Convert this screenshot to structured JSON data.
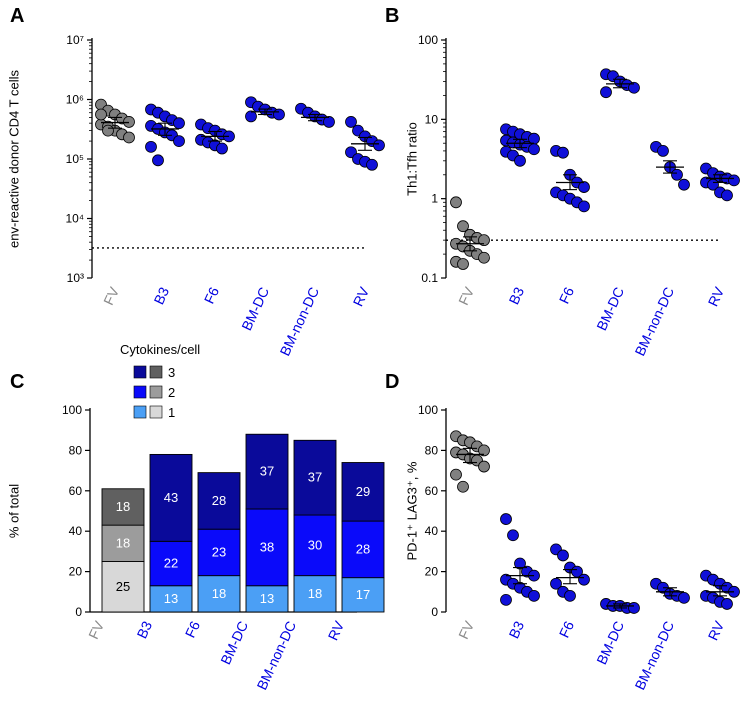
{
  "colors": {
    "grey": "#808080",
    "blue": "#1010d8",
    "cat_fv": "#8a8a8a",
    "cat_blue": "#0000e0"
  },
  "chart_data": [
    {
      "panel": "A",
      "type": "scatter",
      "ylabel": "env-reactive donor CD4 T cells",
      "yscale": "log",
      "ylim": [
        1000,
        10000000
      ],
      "ytick_labels": [
        "10³",
        "10⁴",
        "10⁵",
        "10⁶",
        "10⁷"
      ],
      "ytick_values": [
        1000,
        10000,
        100000,
        1000000,
        10000000
      ],
      "threshold": 3200,
      "categories": [
        "FV",
        "B3",
        "F6",
        "BM-DC",
        "BM-non-DC",
        "RV"
      ],
      "mean": [
        410000,
        320000,
        240000,
        620000,
        500000,
        180000
      ],
      "sem_lower": [
        330000,
        250000,
        200000,
        560000,
        440000,
        140000
      ],
      "sem_upper": [
        500000,
        400000,
        290000,
        690000,
        560000,
        230000
      ],
      "points": [
        [
          820000,
          650000,
          560000,
          480000,
          420000,
          380000,
          350000,
          300000,
          260000,
          230000,
          560000,
          300000
        ],
        [
          680000,
          600000,
          520000,
          450000,
          400000,
          360000,
          320000,
          280000,
          250000,
          200000,
          160000,
          95000
        ],
        [
          380000,
          330000,
          300000,
          260000,
          240000,
          210000,
          190000,
          170000,
          150000
        ],
        [
          900000,
          760000,
          680000,
          600000,
          560000,
          520000
        ],
        [
          700000,
          600000,
          520000,
          460000,
          420000
        ],
        [
          420000,
          300000,
          240000,
          200000,
          170000,
          130000,
          100000,
          90000,
          80000
        ]
      ]
    },
    {
      "panel": "B",
      "type": "scatter",
      "ylabel": "Th1:Tfh ratio",
      "yscale": "log",
      "ylim": [
        0.1,
        100
      ],
      "ytick_labels": [
        "0.1",
        "1",
        "10",
        "100"
      ],
      "ytick_values": [
        0.1,
        1,
        10,
        100
      ],
      "threshold": 0.3,
      "categories": [
        "FV",
        "B3",
        "F6",
        "BM-DC",
        "BM-non-DC",
        "RV"
      ],
      "mean": [
        0.27,
        5.0,
        1.6,
        28,
        2.5,
        1.8
      ],
      "sem_lower": [
        0.22,
        4.4,
        1.3,
        25,
        2.1,
        1.6
      ],
      "sem_upper": [
        0.33,
        5.6,
        2.0,
        32,
        3.0,
        2.0
      ],
      "points": [
        [
          0.9,
          0.45,
          0.35,
          0.32,
          0.3,
          0.27,
          0.25,
          0.22,
          0.2,
          0.18,
          0.16,
          0.15
        ],
        [
          7.5,
          7,
          6.5,
          6,
          5.7,
          5.4,
          5.1,
          4.8,
          4.5,
          4.2,
          3.9,
          3.5,
          3
        ],
        [
          4,
          3.8,
          2,
          1.6,
          1.4,
          1.2,
          1.1,
          1.0,
          0.9,
          0.8
        ],
        [
          37,
          35,
          30,
          27,
          25,
          22
        ],
        [
          4.5,
          4.0,
          2.5,
          2.0,
          1.5
        ],
        [
          2.4,
          2.1,
          1.9,
          1.8,
          1.7,
          1.6,
          1.5,
          1.2,
          1.1
        ]
      ]
    },
    {
      "panel": "C",
      "type": "bar",
      "stacked": true,
      "ylabel": "% of total",
      "ylim": [
        0,
        100
      ],
      "ytick_values": [
        0,
        20,
        40,
        60,
        80,
        100
      ],
      "legend_title": "Cytokines/cell",
      "legend_items": [
        "3",
        "2",
        "1"
      ],
      "categories": [
        "FV",
        "B3",
        "F6",
        "BM-DC",
        "BM-non-DC",
        "RV"
      ],
      "series": [
        {
          "name": "1",
          "values": [
            25,
            13,
            18,
            13,
            18,
            17
          ],
          "labels": [
            "25",
            "13",
            "18",
            "13",
            "18",
            "17"
          ],
          "color_blue": "#4b9ff5",
          "color_grey": "#d8d8d8"
        },
        {
          "name": "2",
          "values": [
            18,
            22,
            23,
            38,
            30,
            28
          ],
          "labels": [
            "18",
            "22",
            "23",
            "38",
            "30",
            "28"
          ],
          "color_blue": "#0a0afa",
          "color_grey": "#9c9c9c"
        },
        {
          "name": "3",
          "values": [
            18,
            43,
            28,
            37,
            37,
            29
          ],
          "labels": [
            "18",
            "43",
            "28",
            "37",
            "37",
            "29"
          ],
          "color_blue": "#0a0a9a",
          "color_grey": "#606060"
        }
      ]
    },
    {
      "panel": "D",
      "type": "scatter",
      "ylabel": "PD-1⁺ LAG3⁺, %",
      "yscale": "linear",
      "ylim": [
        0,
        100
      ],
      "ytick_labels": [
        "0",
        "20",
        "40",
        "60",
        "80",
        "100"
      ],
      "ytick_values": [
        0,
        20,
        40,
        60,
        80,
        100
      ],
      "categories": [
        "FV",
        "B3",
        "F6",
        "BM-DC",
        "BM-non-DC",
        "RV"
      ],
      "mean": [
        78,
        18,
        17,
        3,
        10,
        10
      ],
      "sem_lower": [
        74,
        14,
        14,
        2,
        8,
        8
      ],
      "sem_upper": [
        81,
        22,
        21,
        4,
        12,
        13
      ],
      "points": [
        [
          87,
          85,
          84,
          82,
          80,
          79,
          78,
          76,
          75,
          72,
          68,
          62
        ],
        [
          46,
          38,
          24,
          20,
          18,
          16,
          14,
          12,
          10,
          8,
          6
        ],
        [
          31,
          28,
          22,
          20,
          16,
          14,
          10,
          8
        ],
        [
          4,
          3,
          3,
          2,
          2
        ],
        [
          14,
          12,
          9,
          8,
          7
        ],
        [
          18,
          16,
          14,
          12,
          10,
          8,
          7,
          5,
          4
        ]
      ]
    }
  ]
}
